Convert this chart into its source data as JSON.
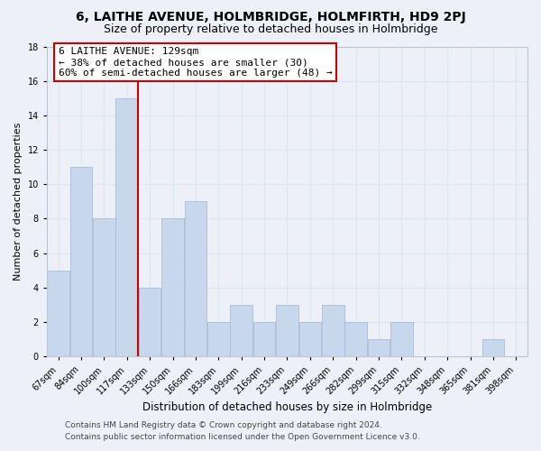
{
  "title": "6, LAITHE AVENUE, HOLMBRIDGE, HOLMFIRTH, HD9 2PJ",
  "subtitle": "Size of property relative to detached houses in Holmbridge",
  "xlabel": "Distribution of detached houses by size in Holmbridge",
  "ylabel": "Number of detached properties",
  "bin_labels": [
    "67sqm",
    "84sqm",
    "100sqm",
    "117sqm",
    "133sqm",
    "150sqm",
    "166sqm",
    "183sqm",
    "199sqm",
    "216sqm",
    "233sqm",
    "249sqm",
    "266sqm",
    "282sqm",
    "299sqm",
    "315sqm",
    "332sqm",
    "348sqm",
    "365sqm",
    "381sqm",
    "398sqm"
  ],
  "bar_values": [
    5,
    11,
    8,
    15,
    4,
    8,
    9,
    2,
    3,
    2,
    3,
    2,
    3,
    2,
    1,
    2,
    0,
    0,
    0,
    1,
    0
  ],
  "bar_color": "#c8d8ec",
  "bar_edge_color": "#a8bcd8",
  "vline_x_index": 4,
  "vline_color": "#cc0000",
  "annotation_line1": "6 LAITHE AVENUE: 129sqm",
  "annotation_line2": "← 38% of detached houses are smaller (30)",
  "annotation_line3": "60% of semi-detached houses are larger (48) →",
  "annotation_box_color": "#ffffff",
  "annotation_box_edge": "#cc0000",
  "ylim": [
    0,
    18
  ],
  "yticks": [
    0,
    2,
    4,
    6,
    8,
    10,
    12,
    14,
    16,
    18
  ],
  "grid_color": "#dce6f0",
  "background_color": "#edf1f7",
  "footer_line1": "Contains HM Land Registry data © Crown copyright and database right 2024.",
  "footer_line2": "Contains public sector information licensed under the Open Government Licence v3.0.",
  "title_fontsize": 10,
  "subtitle_fontsize": 9,
  "xlabel_fontsize": 8.5,
  "ylabel_fontsize": 8,
  "tick_fontsize": 7,
  "annotation_fontsize": 8,
  "footer_fontsize": 6.5
}
